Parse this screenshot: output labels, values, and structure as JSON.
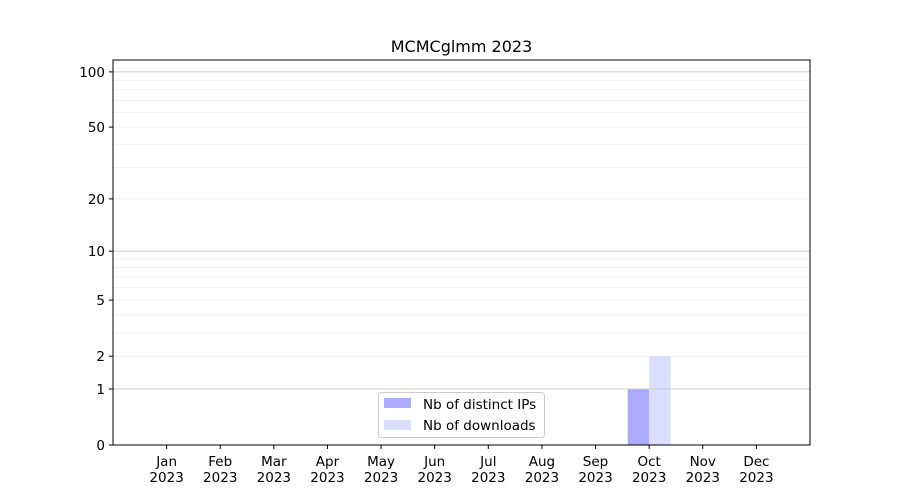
{
  "chart_data": {
    "type": "bar",
    "title": "MCMCglmm 2023",
    "xlabel": "",
    "ylabel": "",
    "categories": [
      "Jan\n2023",
      "Feb\n2023",
      "Mar\n2023",
      "Apr\n2023",
      "May\n2023",
      "Jun\n2023",
      "Jul\n2023",
      "Aug\n2023",
      "Sep\n2023",
      "Oct\n2023",
      "Nov\n2023",
      "Dec\n2023"
    ],
    "series": [
      {
        "name": "Nb of distinct IPs",
        "color": "#aaaaff",
        "values": [
          0,
          0,
          0,
          0,
          0,
          0,
          0,
          0,
          0,
          1,
          0,
          0
        ]
      },
      {
        "name": "Nb of downloads",
        "color": "#ddddff",
        "values": [
          0,
          0,
          0,
          0,
          0,
          0,
          0,
          0,
          0,
          2,
          0,
          0
        ]
      }
    ],
    "yscale": "symlog",
    "yticks": [
      0,
      1,
      2,
      5,
      10,
      20,
      50,
      100
    ],
    "ytick_labels": [
      "0",
      "1",
      "2",
      "5",
      "10",
      "20",
      "50",
      "100"
    ],
    "ylim": [
      0,
      116
    ],
    "grid": true,
    "legend_position": "lower-center"
  }
}
